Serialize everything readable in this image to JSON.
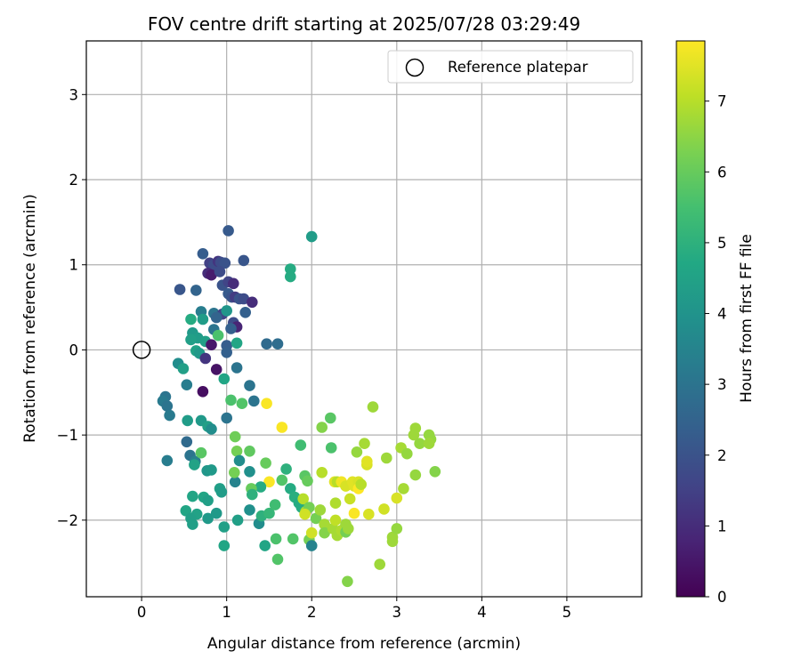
{
  "chart_data": {
    "type": "scatter",
    "title": "FOV centre drift starting at 2025/07/28 03:29:49",
    "xlabel": "Angular distance from reference (arcmin)",
    "ylabel": "Rotation from reference (arcmin)",
    "xlim": [
      -0.65,
      5.88
    ],
    "ylim": [
      -2.9,
      3.63
    ],
    "xticks": [
      0,
      1,
      2,
      3,
      4,
      5
    ],
    "yticks": [
      -2,
      -1,
      0,
      1,
      2,
      3
    ],
    "grid": true,
    "legend": {
      "placement": "top-right",
      "entries": [
        "Reference platepar"
      ]
    },
    "reference_point": {
      "x": 0,
      "y": 0,
      "label": "Reference platepar"
    },
    "colorbar": {
      "label": "Hours from first FF file",
      "colormap": "viridis",
      "range": [
        0,
        7.85
      ],
      "ticks": [
        0,
        1,
        2,
        3,
        4,
        5,
        6,
        7
      ]
    },
    "points": [
      [
        1.02,
        1.4,
        2.2
      ],
      [
        2.0,
        1.33,
        4.3
      ],
      [
        0.72,
        1.13,
        2.3
      ],
      [
        0.8,
        1.02,
        1.5
      ],
      [
        0.85,
        1.0,
        1.8
      ],
      [
        0.9,
        1.04,
        1.2
      ],
      [
        0.93,
        1.03,
        1.8
      ],
      [
        0.98,
        1.02,
        2.0
      ],
      [
        1.2,
        1.05,
        2.1
      ],
      [
        0.78,
        0.9,
        1.0
      ],
      [
        0.82,
        0.88,
        0.6
      ],
      [
        0.92,
        0.92,
        1.8
      ],
      [
        1.75,
        0.95,
        4.8
      ],
      [
        1.75,
        0.86,
        4.8
      ],
      [
        0.95,
        0.76,
        2.0
      ],
      [
        1.02,
        0.8,
        1.6
      ],
      [
        1.08,
        0.78,
        1.0
      ],
      [
        0.45,
        0.71,
        2.1
      ],
      [
        0.64,
        0.7,
        2.5
      ],
      [
        1.02,
        0.66,
        2.2
      ],
      [
        1.06,
        0.62,
        2.0
      ],
      [
        1.1,
        0.62,
        1.4
      ],
      [
        1.15,
        0.6,
        2.0
      ],
      [
        1.2,
        0.6,
        1.8
      ],
      [
        1.3,
        0.56,
        1.0
      ],
      [
        0.7,
        0.45,
        3.3
      ],
      [
        0.85,
        0.43,
        3.0
      ],
      [
        0.95,
        0.42,
        1.6
      ],
      [
        1.0,
        0.46,
        4.1
      ],
      [
        0.58,
        0.36,
        4.8
      ],
      [
        0.88,
        0.38,
        2.5
      ],
      [
        1.22,
        0.44,
        2.4
      ],
      [
        0.72,
        0.36,
        4.3
      ],
      [
        1.08,
        0.32,
        1.8
      ],
      [
        1.12,
        0.27,
        0.8
      ],
      [
        0.85,
        0.24,
        3.0
      ],
      [
        1.05,
        0.25,
        2.4
      ],
      [
        0.6,
        0.2,
        4.2
      ],
      [
        0.66,
        0.14,
        4.3
      ],
      [
        0.58,
        0.12,
        4.4
      ],
      [
        0.75,
        0.1,
        4.4
      ],
      [
        0.82,
        0.06,
        0.5
      ],
      [
        1.0,
        0.05,
        2.3
      ],
      [
        1.47,
        0.07,
        2.7
      ],
      [
        1.6,
        0.07,
        2.8
      ],
      [
        0.64,
        -0.01,
        4.5
      ],
      [
        0.68,
        -0.04,
        4.2
      ],
      [
        0.9,
        0.17,
        5.6
      ],
      [
        1.12,
        0.08,
        4.6
      ],
      [
        1.0,
        -0.03,
        2.4
      ],
      [
        0.75,
        -0.1,
        1.2
      ],
      [
        0.43,
        -0.16,
        3.8
      ],
      [
        0.49,
        -0.22,
        4.4
      ],
      [
        0.88,
        -0.23,
        0.4
      ],
      [
        1.12,
        -0.21,
        3.0
      ],
      [
        0.97,
        -0.34,
        4.6
      ],
      [
        0.53,
        -0.41,
        3.3
      ],
      [
        1.27,
        -0.42,
        3.0
      ],
      [
        0.72,
        -0.49,
        0.3
      ],
      [
        0.28,
        -0.55,
        3.0
      ],
      [
        0.25,
        -0.6,
        3.2
      ],
      [
        1.05,
        -0.59,
        5.6
      ],
      [
        1.18,
        -0.63,
        5.7
      ],
      [
        1.32,
        -0.6,
        3.0
      ],
      [
        0.3,
        -0.66,
        3.0
      ],
      [
        0.33,
        -0.77,
        3.2
      ],
      [
        1.0,
        -0.8,
        3.0
      ],
      [
        0.54,
        -0.83,
        4.3
      ],
      [
        0.7,
        -0.83,
        4.2
      ],
      [
        0.78,
        -0.9,
        4.4
      ],
      [
        0.82,
        -0.93,
        3.8
      ],
      [
        1.47,
        -0.63,
        7.8
      ],
      [
        1.65,
        -0.91,
        7.8
      ],
      [
        0.53,
        -1.08,
        2.7
      ],
      [
        0.57,
        -1.24,
        3.0
      ],
      [
        0.63,
        -1.31,
        3.4
      ],
      [
        0.7,
        -1.21,
        5.8
      ],
      [
        0.3,
        -1.3,
        3.3
      ],
      [
        0.62,
        -1.35,
        4.5
      ],
      [
        0.77,
        -1.42,
        4.1
      ],
      [
        0.82,
        -1.41,
        4.2
      ],
      [
        1.1,
        -1.02,
        6.1
      ],
      [
        1.12,
        -1.19,
        6.2
      ],
      [
        1.15,
        -1.3,
        3.8
      ],
      [
        1.27,
        -1.19,
        5.9
      ],
      [
        1.46,
        -1.33,
        6.0
      ],
      [
        1.27,
        -1.43,
        3.9
      ],
      [
        1.1,
        -1.55,
        3.5
      ],
      [
        1.09,
        -1.44,
        6.2
      ],
      [
        1.7,
        -1.4,
        5.0
      ],
      [
        1.87,
        -1.12,
        5.4
      ],
      [
        1.5,
        -1.55,
        7.8
      ],
      [
        1.4,
        -1.61,
        4.8
      ],
      [
        1.29,
        -1.63,
        6.0
      ],
      [
        1.3,
        -1.7,
        5.0
      ],
      [
        0.6,
        -1.72,
        4.6
      ],
      [
        0.73,
        -1.73,
        4.6
      ],
      [
        0.78,
        -1.77,
        4.4
      ],
      [
        0.92,
        -1.63,
        4.4
      ],
      [
        0.94,
        -1.67,
        4.3
      ],
      [
        0.65,
        -1.93,
        4.5
      ],
      [
        0.52,
        -1.89,
        4.6
      ],
      [
        0.58,
        -1.98,
        4.4
      ],
      [
        0.6,
        -2.05,
        4.4
      ],
      [
        0.78,
        -1.98,
        4.2
      ],
      [
        0.88,
        -1.92,
        4.2
      ],
      [
        0.97,
        -2.08,
        4.4
      ],
      [
        1.13,
        -2.0,
        4.4
      ],
      [
        0.97,
        -2.3,
        4.6
      ],
      [
        1.27,
        -1.88,
        3.9
      ],
      [
        1.38,
        -2.04,
        3.8
      ],
      [
        1.41,
        -1.95,
        5.0
      ],
      [
        1.45,
        -2.3,
        4.6
      ],
      [
        1.5,
        -1.92,
        5.2
      ],
      [
        1.57,
        -1.82,
        5.4
      ],
      [
        1.58,
        -2.22,
        5.6
      ],
      [
        1.6,
        -2.46,
        5.7
      ],
      [
        1.65,
        -1.53,
        5.7
      ],
      [
        1.75,
        -1.63,
        4.8
      ],
      [
        1.8,
        -1.73,
        4.9
      ],
      [
        1.78,
        -2.22,
        5.7
      ],
      [
        1.85,
        -1.8,
        4.8
      ],
      [
        1.88,
        -1.85,
        4.8
      ],
      [
        1.92,
        -1.48,
        5.8
      ],
      [
        1.95,
        -1.54,
        6.0
      ],
      [
        1.9,
        -1.75,
        7.0
      ],
      [
        1.93,
        -1.9,
        6.8
      ],
      [
        1.97,
        -1.85,
        6.2
      ],
      [
        1.92,
        -1.93,
        7.3
      ],
      [
        1.97,
        -2.23,
        6.2
      ],
      [
        2.0,
        -2.15,
        7.3
      ],
      [
        2.0,
        -2.3,
        3.5
      ],
      [
        2.05,
        -1.98,
        6.2
      ],
      [
        2.12,
        -1.44,
        7.0
      ],
      [
        2.1,
        -1.88,
        6.7
      ],
      [
        2.12,
        -0.91,
        6.4
      ],
      [
        2.22,
        -0.8,
        5.8
      ],
      [
        2.23,
        -1.15,
        5.6
      ],
      [
        2.15,
        -2.05,
        6.8
      ],
      [
        2.15,
        -2.15,
        6.4
      ],
      [
        2.25,
        -2.1,
        6.8
      ],
      [
        2.27,
        -1.55,
        7.5
      ],
      [
        2.3,
        -1.55,
        7.0
      ],
      [
        2.28,
        -2.0,
        7.1
      ],
      [
        2.28,
        -1.8,
        6.9
      ],
      [
        2.3,
        -2.18,
        6.8
      ],
      [
        2.35,
        -1.55,
        7.7
      ],
      [
        2.35,
        -2.12,
        6.9
      ],
      [
        2.4,
        -2.05,
        6.7
      ],
      [
        2.4,
        -1.6,
        7.4
      ],
      [
        2.4,
        -2.14,
        6.2
      ],
      [
        2.43,
        -2.1,
        6.7
      ],
      [
        2.45,
        -1.75,
        7.2
      ],
      [
        2.48,
        -1.55,
        7.5
      ],
      [
        2.5,
        -1.6,
        7.5
      ],
      [
        2.55,
        -1.55,
        7.4
      ],
      [
        2.55,
        -1.63,
        7.9
      ],
      [
        2.5,
        -1.92,
        7.8
      ],
      [
        2.53,
        -1.2,
        6.6
      ],
      [
        2.58,
        -1.58,
        7.0
      ],
      [
        2.62,
        -1.1,
        6.8
      ],
      [
        2.65,
        -1.35,
        7.4
      ],
      [
        2.65,
        -1.31,
        7.5
      ],
      [
        2.67,
        -1.93,
        7.4
      ],
      [
        2.72,
        -0.67,
        6.7
      ],
      [
        2.8,
        -2.52,
        6.7
      ],
      [
        2.85,
        -1.87,
        7.3
      ],
      [
        2.88,
        -1.27,
        6.7
      ],
      [
        2.95,
        -2.2,
        6.7
      ],
      [
        2.95,
        -2.25,
        6.7
      ],
      [
        3.0,
        -2.1,
        6.6
      ],
      [
        3.0,
        -1.74,
        7.4
      ],
      [
        3.05,
        -1.15,
        6.8
      ],
      [
        3.08,
        -1.63,
        6.8
      ],
      [
        3.12,
        -1.22,
        6.6
      ],
      [
        3.22,
        -0.92,
        6.7
      ],
      [
        3.2,
        -1.0,
        6.7
      ],
      [
        3.27,
        -1.1,
        6.6
      ],
      [
        3.22,
        -1.47,
        6.6
      ],
      [
        3.38,
        -1.0,
        6.6
      ],
      [
        3.4,
        -1.05,
        6.6
      ],
      [
        3.38,
        -1.1,
        6.7
      ],
      [
        3.45,
        -1.43,
        6.4
      ],
      [
        2.42,
        -2.72,
        6.4
      ]
    ]
  }
}
